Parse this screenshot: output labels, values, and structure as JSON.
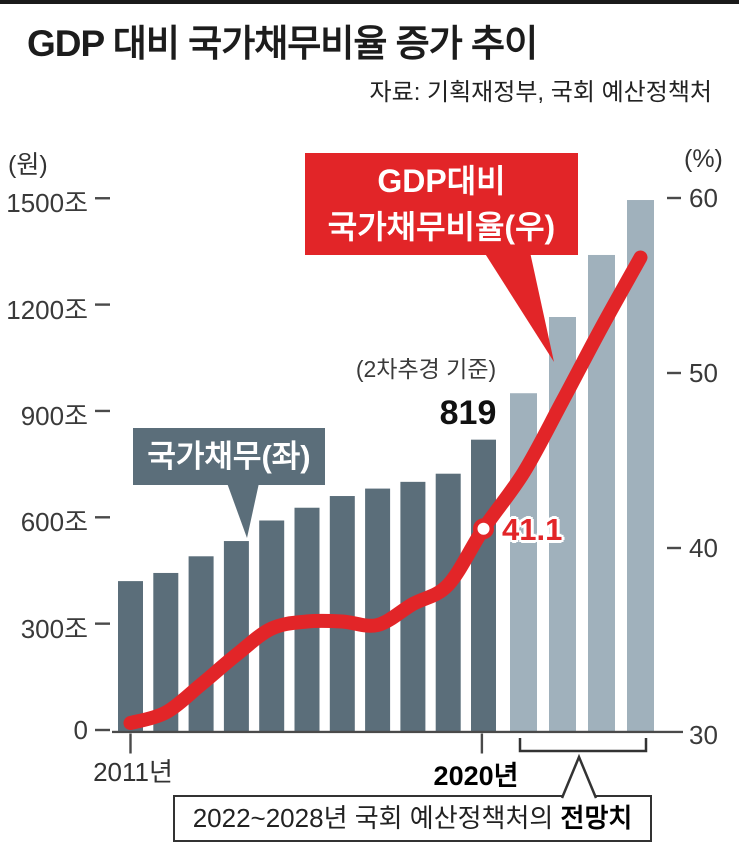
{
  "page": {
    "top_rule_color": "#1a1a1a",
    "title": "GDP 대비 국가채무비율 증가 추이",
    "source": "자료: 기획재정부, 국회 예산정책처"
  },
  "chart_data": {
    "type": "combo-bar-line",
    "left_axis": {
      "unit": "(원)",
      "tick_labels": [
        "1500조",
        "1200조",
        "900조",
        "600조",
        "300조",
        "0"
      ],
      "tick_values": [
        1500,
        1200,
        900,
        600,
        300,
        0
      ],
      "range": [
        0,
        1500
      ]
    },
    "right_axis": {
      "unit": "(%)",
      "tick_labels": [
        "60",
        "50",
        "40",
        "30"
      ],
      "tick_values": [
        60,
        50,
        40,
        30
      ],
      "range": [
        30,
        60
      ]
    },
    "x_axis": {
      "first_label": "2011년",
      "last_actual_label": "2020년"
    },
    "bar_series": {
      "name": "국가채무(좌)",
      "unit": "조원",
      "actual_values": [
        420,
        443,
        490,
        533,
        591,
        627,
        660,
        681,
        700,
        723,
        819
      ],
      "forecast_values": [
        950,
        1165,
        1340,
        1495
      ],
      "actual_color": "#5b6e7a",
      "forecast_color": "#a0b1bc"
    },
    "line_series": {
      "name": "GDP대비 국가채무비율(우)",
      "values_pct": [
        30.0,
        30.6,
        32.2,
        33.9,
        35.4,
        35.8,
        35.8,
        35.6,
        36.8,
        37.9,
        41.1,
        44.3,
        48.4,
        52.6,
        56.6
      ],
      "color": "#e22528"
    },
    "annotations": {
      "bar_callout": "국가채무(좌)",
      "line_callout_line1": "GDP대비",
      "line_callout_line2": "국가채무비율(우)",
      "peak_note": "(2차추경 기준)",
      "peak_value": "819",
      "highlight_pct": "41.1",
      "forecast_note_regular": "2022~2028년 국회 예산정책처의 ",
      "forecast_note_bold": "전망치"
    },
    "layout_hints": {
      "axis_color": "#4a4a4a",
      "grid": "off",
      "forecast_bracket": true
    }
  }
}
